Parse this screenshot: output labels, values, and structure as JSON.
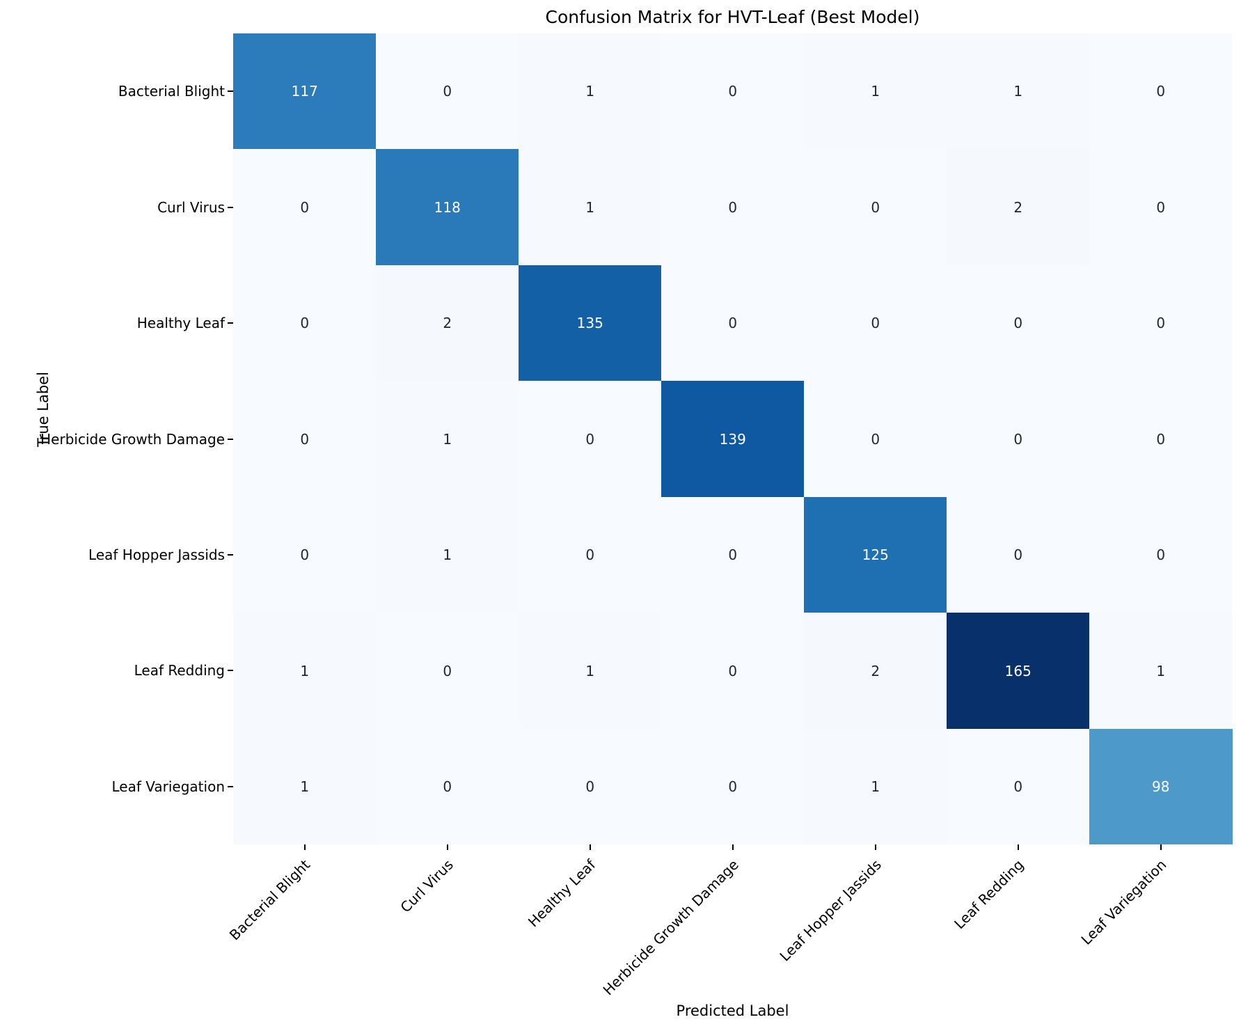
{
  "chart_data": {
    "type": "heatmap",
    "title": "Confusion Matrix for HVT-Leaf (Best Model)",
    "xlabel": "Predicted Label",
    "ylabel": "True Label",
    "categories": [
      "Bacterial Blight",
      "Curl Virus",
      "Healthy Leaf",
      "Herbicide Growth Damage",
      "Leaf Hopper Jassids",
      "Leaf Redding",
      "Leaf Variegation"
    ],
    "matrix": [
      [
        117,
        0,
        1,
        0,
        1,
        1,
        0
      ],
      [
        0,
        118,
        1,
        0,
        0,
        2,
        0
      ],
      [
        0,
        2,
        135,
        0,
        0,
        0,
        0
      ],
      [
        0,
        1,
        0,
        139,
        0,
        0,
        0
      ],
      [
        0,
        1,
        0,
        0,
        125,
        0,
        0
      ],
      [
        1,
        0,
        1,
        0,
        2,
        165,
        1
      ],
      [
        1,
        0,
        0,
        0,
        1,
        0,
        98
      ]
    ],
    "vmin": 0,
    "vmax": 165,
    "colormap": "Blues",
    "colormap_stops": [
      "#f7fbff",
      "#deebf7",
      "#c6dbef",
      "#9ecae1",
      "#6baed6",
      "#4292c6",
      "#2171b5",
      "#08519c",
      "#08306b"
    ],
    "annotation_color_on_light": "#262626",
    "annotation_color_on_dark": "#ffffff",
    "axis_text_color": "#000000",
    "background_color": "#ffffff",
    "legend_position": "none",
    "grid": false
  }
}
